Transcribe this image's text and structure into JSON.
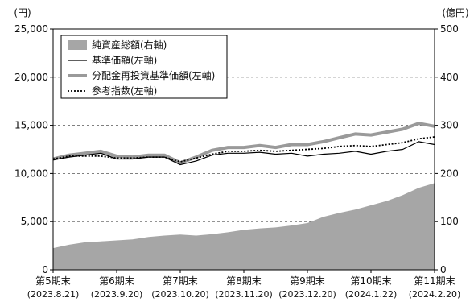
{
  "chart_data": {
    "type": "line",
    "left_unit": "(円)",
    "right_unit": "(億円)",
    "left_axis": {
      "ylim": [
        0,
        25000
      ],
      "ticks": [
        "0",
        "5,000",
        "10,000",
        "15,000",
        "20,000",
        "25,000"
      ],
      "tick_values": [
        0,
        5000,
        10000,
        15000,
        20000,
        25000
      ]
    },
    "right_axis": {
      "ylim": [
        0,
        500
      ],
      "ticks": [
        "0",
        "100",
        "200",
        "300",
        "400",
        "500"
      ],
      "tick_values": [
        0,
        100,
        200,
        300,
        400,
        500
      ]
    },
    "grid": "dashed horizontal",
    "legend_position": "top-left",
    "x_categories": [
      {
        "label": "第5期末",
        "date": "(2023.8.21)"
      },
      {
        "label": "第6期末",
        "date": "(2023.9.20)"
      },
      {
        "label": "第7期末",
        "date": "(2023.10.20)"
      },
      {
        "label": "第8期末",
        "date": "(2023.11.20)"
      },
      {
        "label": "第9期末",
        "date": "(2023.12.20)"
      },
      {
        "label": "第10期末",
        "date": "(2024.1.22)"
      },
      {
        "label": "第11期末",
        "date": "(2024.2.20)"
      }
    ],
    "x": [
      0,
      0.25,
      0.5,
      0.75,
      1,
      1.25,
      1.5,
      1.75,
      2,
      2.25,
      2.5,
      2.75,
      3,
      3.25,
      3.5,
      3.75,
      4,
      4.25,
      4.5,
      4.75,
      5,
      5.25,
      5.5,
      5.75,
      6
    ],
    "series": [
      {
        "name": "純資産総額(右軸)",
        "axis": "right",
        "style": "area",
        "color": "#a6a6a6",
        "values": [
          45,
          52,
          57,
          59,
          61,
          63,
          68,
          71,
          73,
          71,
          74,
          78,
          83,
          86,
          88,
          92,
          97,
          110,
          118,
          125,
          134,
          143,
          155,
          170,
          180
        ]
      },
      {
        "name": "基準価額(左軸)",
        "axis": "left",
        "style": "solid-thin",
        "color": "#000000",
        "values": [
          11400,
          11700,
          11900,
          12100,
          11500,
          11500,
          11700,
          11700,
          10900,
          11300,
          11900,
          12100,
          12100,
          12200,
          12000,
          12100,
          11800,
          12000,
          12100,
          12300,
          12000,
          12300,
          12500,
          13300,
          13000
        ]
      },
      {
        "name": "分配金再投資基準価額(左軸)",
        "axis": "left",
        "style": "solid-thick",
        "color": "#9a9a9a",
        "values": [
          11500,
          11900,
          12100,
          12300,
          11800,
          11700,
          11900,
          11900,
          11100,
          11700,
          12400,
          12700,
          12700,
          12900,
          12700,
          13000,
          13000,
          13300,
          13700,
          14100,
          14000,
          14300,
          14600,
          15200,
          14900
        ]
      },
      {
        "name": "参考指数(左軸)",
        "axis": "left",
        "style": "dotted",
        "color": "#000000",
        "values": [
          11500,
          11800,
          11800,
          11800,
          11600,
          11600,
          11700,
          11700,
          11200,
          11600,
          12000,
          12300,
          12300,
          12400,
          12300,
          12400,
          12500,
          12600,
          12800,
          12900,
          12800,
          13000,
          13200,
          13600,
          13800
        ]
      }
    ]
  }
}
